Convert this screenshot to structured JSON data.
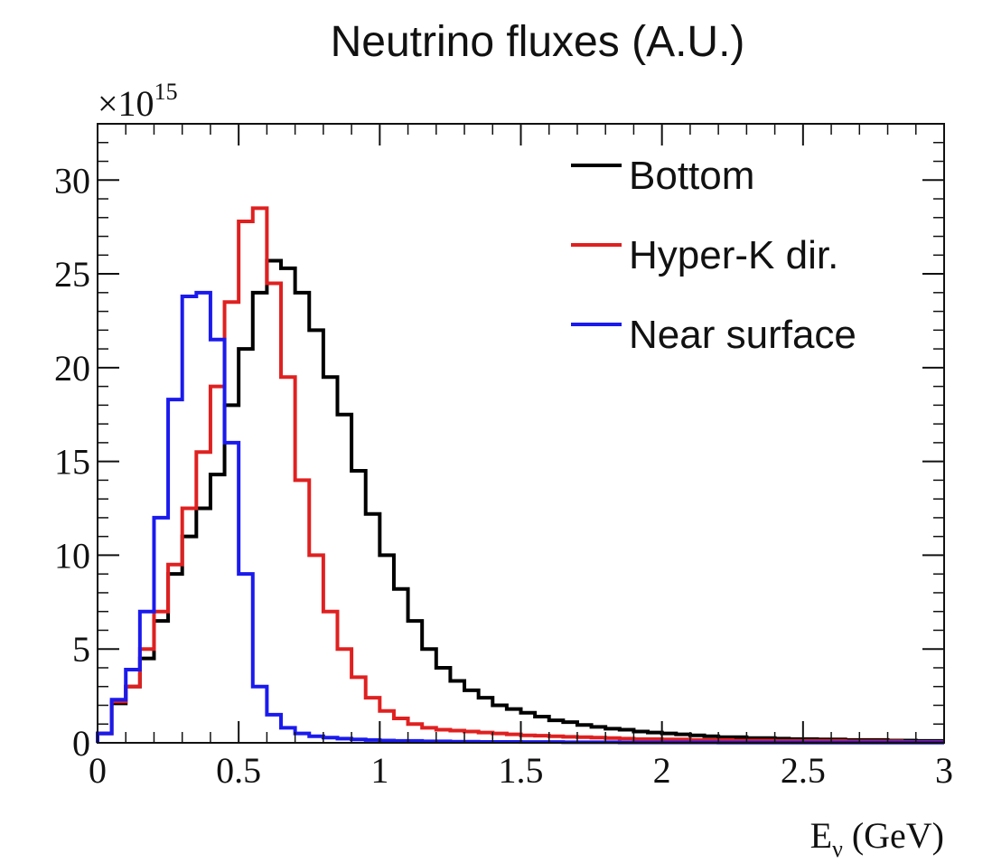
{
  "chart_data": {
    "type": "line",
    "title": "Neutrino fluxes (A.U.)",
    "xlabel": "Eν (GeV)",
    "xlabel_main": "E",
    "xlabel_sub": "ν",
    "xlabel_unit": "(GeV)",
    "ylabel": "",
    "y_multiplier_base": "×10",
    "y_multiplier_exp": "15",
    "xlim": [
      0,
      3
    ],
    "ylim": [
      0,
      33
    ],
    "x_ticks": [
      0,
      0.5,
      1,
      1.5,
      2,
      2.5,
      3
    ],
    "x_tick_labels": [
      "0",
      "0.5",
      "1",
      "1.5",
      "2",
      "2.5",
      "3"
    ],
    "y_ticks": [
      0,
      5,
      10,
      15,
      20,
      25,
      30
    ],
    "y_tick_labels": [
      "0",
      "5",
      "10",
      "15",
      "20",
      "25",
      "30"
    ],
    "bin_width": 0.05,
    "legend_position": "top-right",
    "grid": false,
    "series": [
      {
        "name": "Bottom",
        "color": "#000000",
        "values": [
          0.5,
          2.1,
          3.0,
          4.5,
          6.5,
          9.0,
          11.0,
          12.5,
          14.3,
          18.0,
          21.0,
          24.0,
          25.7,
          25.3,
          24.0,
          22.0,
          19.5,
          17.5,
          14.5,
          12.2,
          10.0,
          8.2,
          6.5,
          5.0,
          4.0,
          3.3,
          2.8,
          2.4,
          2.0,
          1.8,
          1.6,
          1.4,
          1.2,
          1.1,
          0.95,
          0.85,
          0.75,
          0.7,
          0.6,
          0.55,
          0.5,
          0.45,
          0.4,
          0.35,
          0.3,
          0.3,
          0.25,
          0.25,
          0.22,
          0.2,
          0.2,
          0.18,
          0.18,
          0.15,
          0.15,
          0.15,
          0.12,
          0.12,
          0.1,
          0.1
        ]
      },
      {
        "name": "Hyper-K dir.",
        "color": "#e02020",
        "values": [
          0.5,
          2.2,
          3.0,
          5.0,
          7.0,
          9.5,
          12.5,
          15.5,
          19.0,
          23.5,
          27.8,
          28.5,
          24.5,
          19.5,
          14.0,
          10.0,
          7.0,
          5.0,
          3.5,
          2.4,
          1.7,
          1.3,
          1.0,
          0.8,
          0.7,
          0.65,
          0.6,
          0.55,
          0.5,
          0.45,
          0.4,
          0.38,
          0.35,
          0.32,
          0.3,
          0.28,
          0.25,
          0.22,
          0.2,
          0.2,
          0.18,
          0.18,
          0.15,
          0.15,
          0.15,
          0.12,
          0.12,
          0.12,
          0.1,
          0.1,
          0.1,
          0.1,
          0.1,
          0.08,
          0.08,
          0.08,
          0.08,
          0.05,
          0.05,
          0.05
        ]
      },
      {
        "name": "Near surface",
        "color": "#1a1aee",
        "values": [
          0.5,
          2.3,
          3.9,
          7.0,
          12.0,
          18.3,
          23.8,
          24.0,
          21.5,
          16.0,
          9.0,
          3.0,
          1.5,
          0.8,
          0.5,
          0.35,
          0.28,
          0.22,
          0.18,
          0.15,
          0.12,
          0.1,
          0.1,
          0.08,
          0.08,
          0.06,
          0.06,
          0.05,
          0.05,
          0.05,
          0.04,
          0.04,
          0.04,
          0.03,
          0.03,
          0.03,
          0.03,
          0.02,
          0.02,
          0.02,
          0.02,
          0.02,
          0.02,
          0.02,
          0.01,
          0.01,
          0.01,
          0.01,
          0.01,
          0.01,
          0.01,
          0.01,
          0.01,
          0.01,
          0.01,
          0.01,
          0.01,
          0.01,
          0.01,
          0.01
        ]
      }
    ]
  }
}
